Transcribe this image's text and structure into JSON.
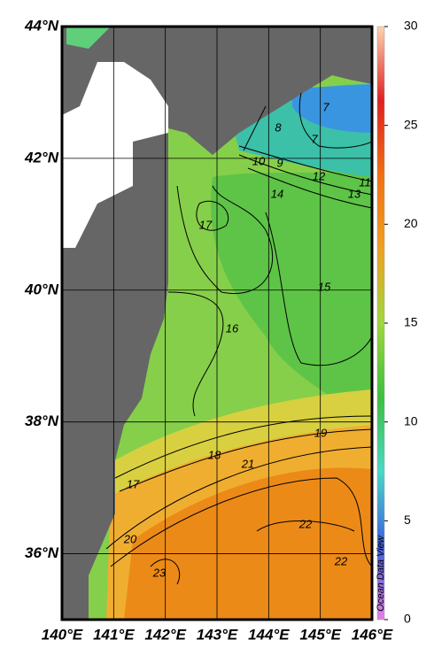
{
  "map": {
    "xlim": [
      140,
      146
    ],
    "ylim": [
      35,
      44
    ],
    "xticks": [
      {
        "value": 140,
        "label": "140°E"
      },
      {
        "value": 141,
        "label": "141°E"
      },
      {
        "value": 142,
        "label": "142°E"
      },
      {
        "value": 143,
        "label": "143°E"
      },
      {
        "value": 144,
        "label": "144°E"
      },
      {
        "value": 145,
        "label": "145°E"
      },
      {
        "value": 146,
        "label": "146°E"
      }
    ],
    "yticks": [
      {
        "value": 36,
        "label": "36°N"
      },
      {
        "value": 38,
        "label": "38°N"
      },
      {
        "value": 40,
        "label": "40°N"
      },
      {
        "value": 42,
        "label": "42°N"
      },
      {
        "value": 44,
        "label": "44°N"
      }
    ],
    "colorbar": {
      "lim": [
        0,
        30
      ],
      "ticks": [
        0,
        5,
        10,
        15,
        20,
        25,
        30
      ],
      "colors": [
        "#e77ee8",
        "#3a5fe0",
        "#4ad8c8",
        "#3cc03c",
        "#9ed83c",
        "#f0a020",
        "#f07010",
        "#e02020",
        "#fdd3b0"
      ]
    },
    "contour_labels": [
      17,
      16,
      15,
      14,
      13,
      12,
      11,
      10,
      9,
      8,
      7,
      7,
      18,
      19,
      21,
      17,
      20,
      22,
      23,
      22
    ],
    "credit": "Ocean Data View"
  }
}
